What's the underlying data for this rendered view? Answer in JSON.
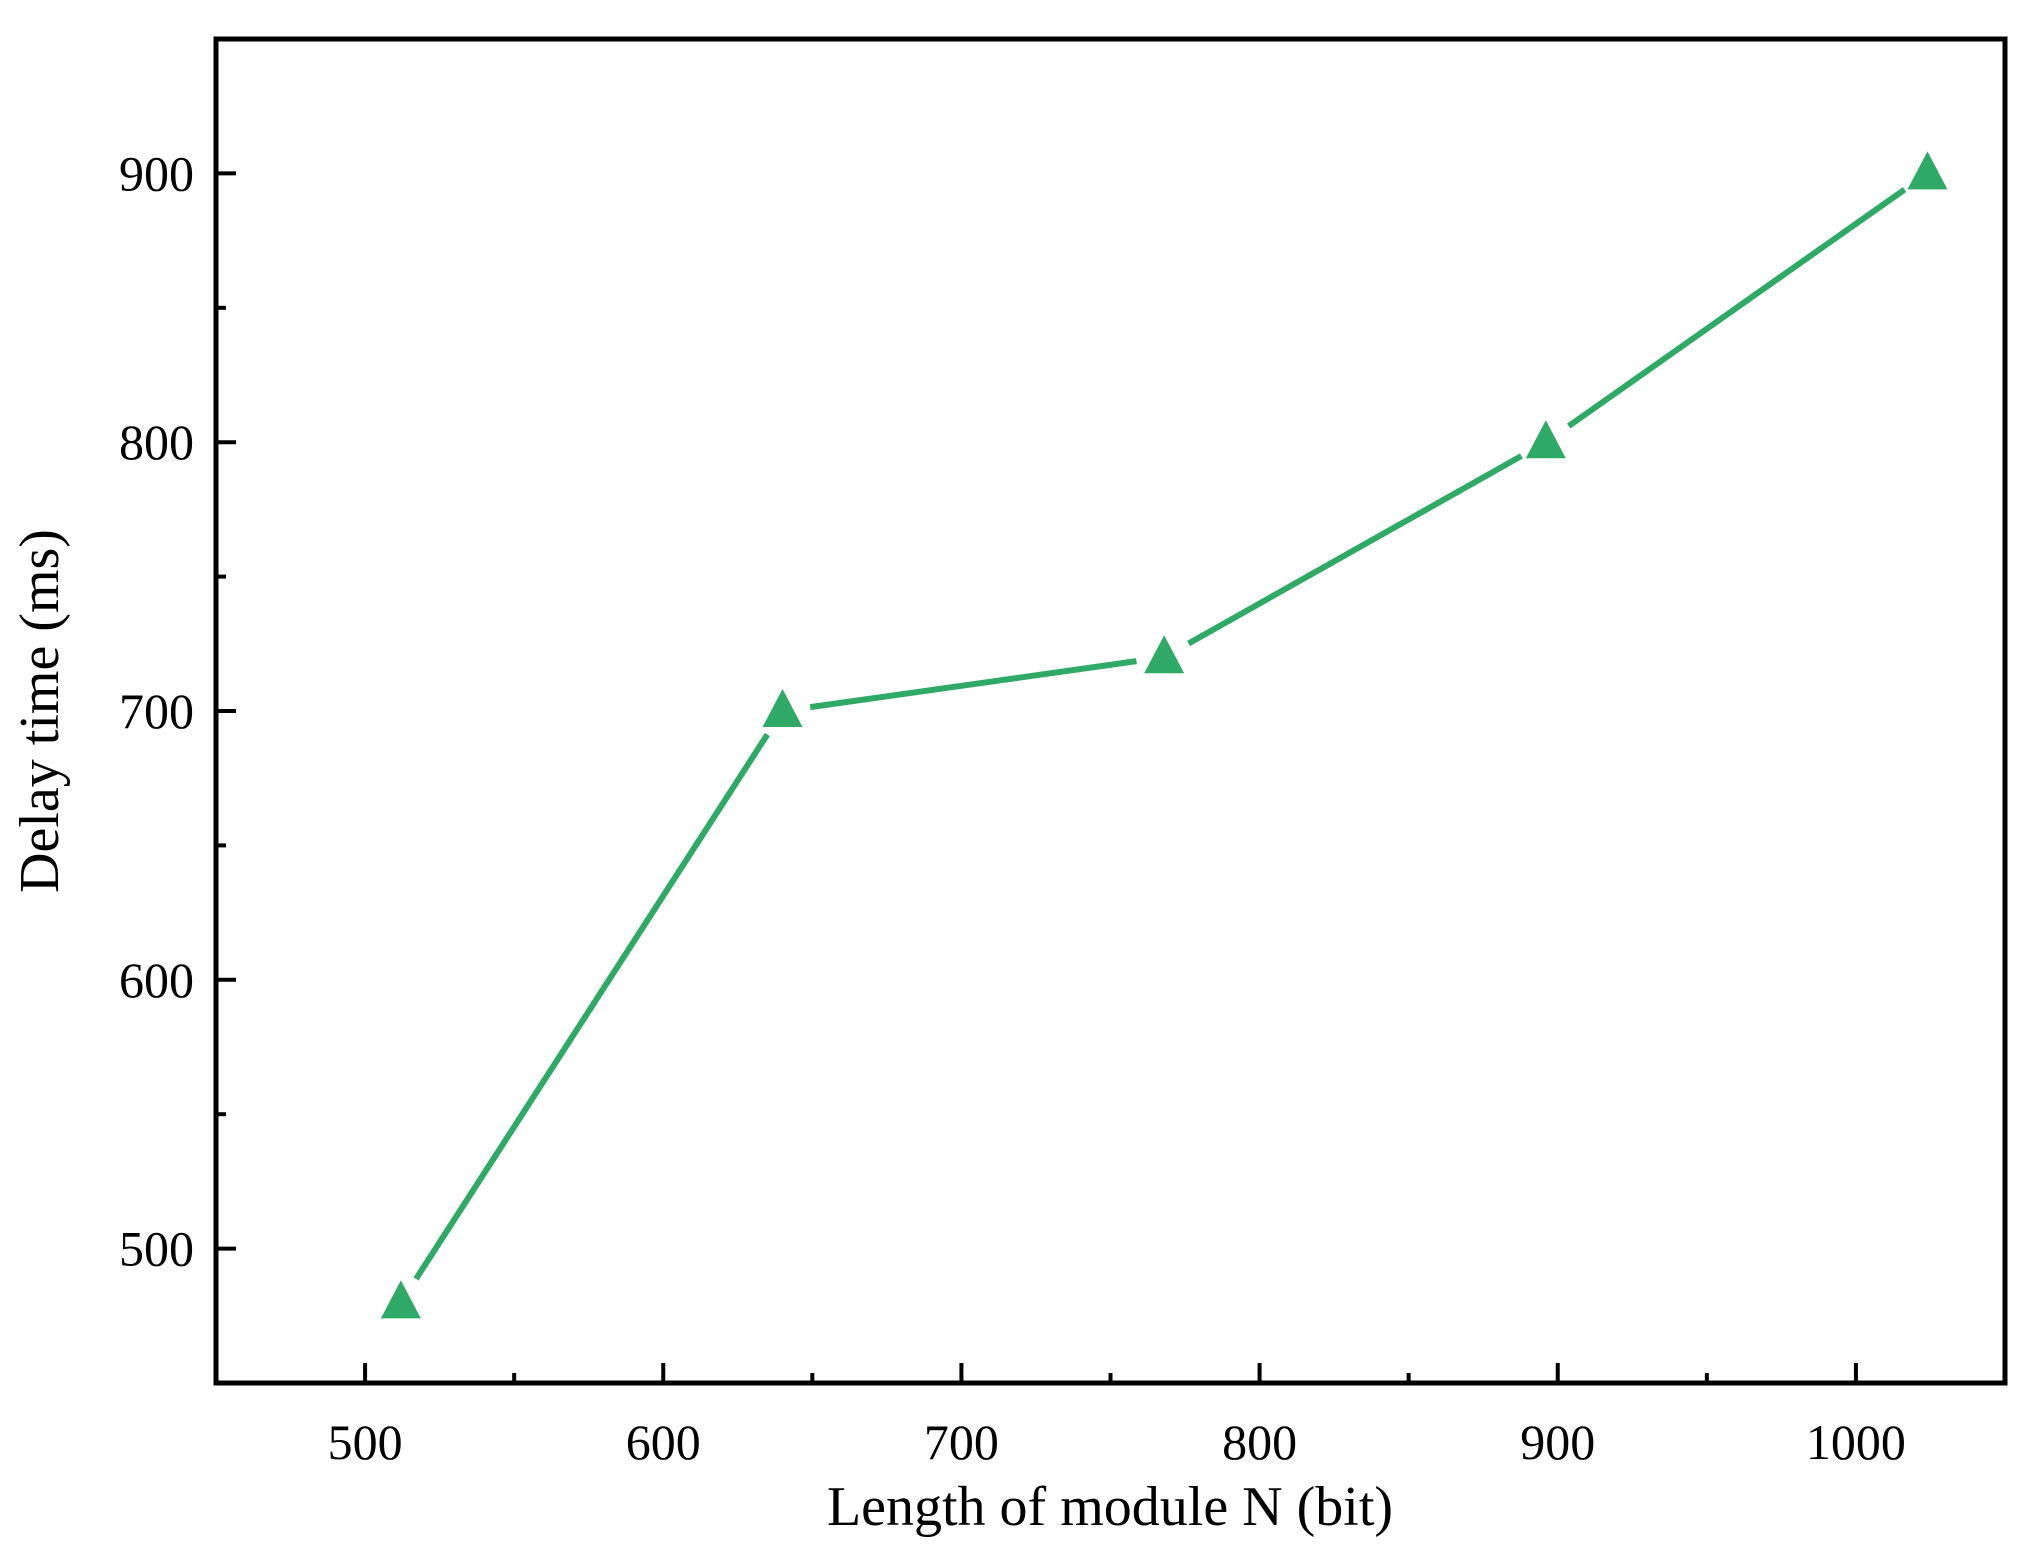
{
  "chart_data": {
    "type": "line",
    "title": "",
    "xlabel": "Length of module N (bit)",
    "ylabel": "Delay time (ms)",
    "xlim": [
      450,
      1050
    ],
    "ylim": [
      450,
      950
    ],
    "xticks": [
      500,
      600,
      700,
      800,
      900,
      1000
    ],
    "yticks": [
      500,
      600,
      700,
      800,
      900
    ],
    "grid": false,
    "series": [
      {
        "name": "Delay time",
        "color": "#2eaa66",
        "marker": "triangle",
        "x": [
          512,
          640,
          768,
          896,
          1024
        ],
        "y": [
          480,
          700,
          720,
          800,
          900
        ]
      }
    ]
  }
}
